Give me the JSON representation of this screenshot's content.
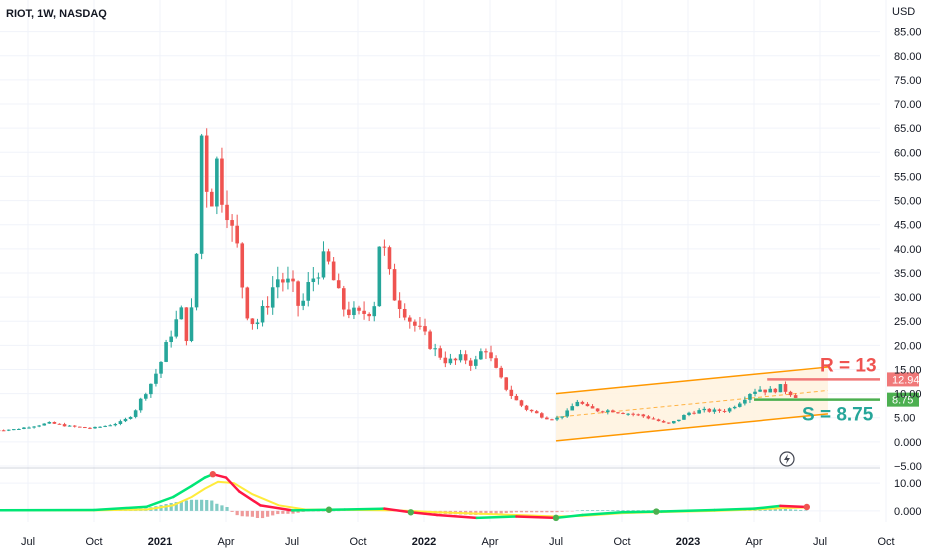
{
  "header": {
    "symbol": "RIOT, 1W, NASDAQ",
    "currency": "USD"
  },
  "chart_data": {
    "type": "candlestick",
    "title": "RIOT, 1W, NASDAQ",
    "ylim": [
      -5,
      87
    ],
    "y_ticks": [
      "85.00",
      "80.00",
      "75.00",
      "70.00",
      "65.00",
      "60.00",
      "55.00",
      "50.00",
      "45.00",
      "40.00",
      "35.00",
      "30.00",
      "25.00",
      "20.00",
      "15.00",
      "10.00",
      "5.00",
      "0.000",
      "−5.00"
    ],
    "x_ticks": [
      {
        "label": "Jul",
        "t": 2020.5
      },
      {
        "label": "Oct",
        "t": 2020.75
      },
      {
        "label": "2021",
        "t": 2021.0,
        "bold": true
      },
      {
        "label": "Apr",
        "t": 2021.25
      },
      {
        "label": "Jul",
        "t": 2021.5
      },
      {
        "label": "Oct",
        "t": 2021.75
      },
      {
        "label": "2022",
        "t": 2022.0,
        "bold": true
      },
      {
        "label": "Apr",
        "t": 2022.25
      },
      {
        "label": "Jul",
        "t": 2022.5
      },
      {
        "label": "Oct",
        "t": 2022.75
      },
      {
        "label": "2023",
        "t": 2023.0,
        "bold": true
      },
      {
        "label": "Apr",
        "t": 2023.25
      },
      {
        "label": "Jul",
        "t": 2023.5
      },
      {
        "label": "Oct",
        "t": 2023.75
      }
    ],
    "price_path": [
      [
        2020.35,
        2.4
      ],
      [
        2020.45,
        2.6
      ],
      [
        2020.52,
        3.3
      ],
      [
        2020.58,
        3.9
      ],
      [
        2020.66,
        3.2
      ],
      [
        2020.74,
        2.8
      ],
      [
        2020.8,
        3.4
      ],
      [
        2020.86,
        4.2
      ],
      [
        2020.9,
        6.0
      ],
      [
        2020.94,
        10.0
      ],
      [
        2020.97,
        12.5
      ],
      [
        2021.0,
        16.0
      ],
      [
        2021.04,
        22.5
      ],
      [
        2021.08,
        27.0
      ],
      [
        2021.1,
        22.0
      ],
      [
        2021.12,
        27.0
      ],
      [
        2021.14,
        40.0
      ],
      [
        2021.155,
        65.0
      ],
      [
        2021.17,
        57.0
      ],
      [
        2021.19,
        47.0
      ],
      [
        2021.21,
        60.0
      ],
      [
        2021.23,
        52.0
      ],
      [
        2021.25,
        50.0
      ],
      [
        2021.27,
        44.0
      ],
      [
        2021.29,
        41.0
      ],
      [
        2021.31,
        33.0
      ],
      [
        2021.33,
        27.0
      ],
      [
        2021.36,
        24.0
      ],
      [
        2021.4,
        28.0
      ],
      [
        2021.44,
        34.0
      ],
      [
        2021.48,
        33.0
      ],
      [
        2021.51,
        31.0
      ],
      [
        2021.53,
        27.0
      ],
      [
        2021.56,
        32.0
      ],
      [
        2021.6,
        36.0
      ],
      [
        2021.63,
        38.0
      ],
      [
        2021.66,
        33.0
      ],
      [
        2021.69,
        28.0
      ],
      [
        2021.72,
        27.0
      ],
      [
        2021.75,
        26.0
      ],
      [
        2021.78,
        27.0
      ],
      [
        2021.81,
        28.0
      ],
      [
        2021.835,
        44.0
      ],
      [
        2021.86,
        36.0
      ],
      [
        2021.89,
        30.0
      ],
      [
        2021.92,
        28.0
      ],
      [
        2021.95,
        25.0
      ],
      [
        2022.0,
        22.0
      ],
      [
        2022.04,
        19.0
      ],
      [
        2022.08,
        17.0
      ],
      [
        2022.11,
        16.5
      ],
      [
        2022.15,
        17.5
      ],
      [
        2022.19,
        16.0
      ],
      [
        2022.23,
        20.0
      ],
      [
        2022.26,
        16.0
      ],
      [
        2022.3,
        12.0
      ],
      [
        2022.34,
        9.0
      ],
      [
        2022.38,
        7.0
      ],
      [
        2022.42,
        6.0
      ],
      [
        2022.46,
        5.0
      ],
      [
        2022.5,
        4.8
      ],
      [
        2022.54,
        6.0
      ],
      [
        2022.58,
        8.5
      ],
      [
        2022.62,
        7.0
      ],
      [
        2022.66,
        6.5
      ],
      [
        2022.71,
        6.5
      ],
      [
        2022.76,
        6.0
      ],
      [
        2022.82,
        5.5
      ],
      [
        2022.88,
        4.5
      ],
      [
        2022.92,
        3.6
      ],
      [
        2022.96,
        4.5
      ],
      [
        2023.0,
        6.0
      ],
      [
        2023.05,
        6.5
      ],
      [
        2023.1,
        6.4
      ],
      [
        2023.15,
        6.6
      ],
      [
        2023.2,
        8.5
      ],
      [
        2023.24,
        10.5
      ],
      [
        2023.27,
        11.0
      ],
      [
        2023.31,
        10.5
      ],
      [
        2023.35,
        11.3
      ],
      [
        2023.38,
        10.4
      ],
      [
        2023.41,
        9.5
      ]
    ],
    "channel": {
      "upper": [
        [
          2022.5,
          10.0
        ],
        [
          2023.53,
          15.5
        ]
      ],
      "lower": [
        [
          2022.5,
          0.2
        ],
        [
          2023.53,
          5.8
        ]
      ]
    },
    "resistance": {
      "label": "R = 13",
      "value": 12.94,
      "tag": "12.94",
      "color": "#f07878",
      "x_from": 2023.3
    },
    "support": {
      "label": "S = 8.75",
      "value": 8.75,
      "tag": "8.75",
      "color": "#4caf50",
      "x_from": 2023.25
    },
    "indicator": {
      "ylim": [
        -4,
        14
      ],
      "y_ticks": [
        "10.00",
        "0.000"
      ],
      "fast": [
        [
          2020.35,
          0.2
        ],
        [
          2020.75,
          0.3
        ],
        [
          2020.95,
          1.5
        ],
        [
          2021.05,
          5
        ],
        [
          2021.12,
          9
        ],
        [
          2021.17,
          12
        ],
        [
          2021.2,
          13.2
        ],
        [
          2021.25,
          12
        ],
        [
          2021.3,
          7
        ],
        [
          2021.38,
          2
        ],
        [
          2021.5,
          0.2
        ],
        [
          2021.7,
          0.5
        ],
        [
          2021.85,
          0.8
        ],
        [
          2021.95,
          -0.5
        ],
        [
          2022.05,
          -1.5
        ],
        [
          2022.2,
          -2.5
        ],
        [
          2022.35,
          -2.0
        ],
        [
          2022.5,
          -2.5
        ],
        [
          2022.6,
          -1.5
        ],
        [
          2022.75,
          -0.5
        ],
        [
          2022.9,
          -0.2
        ],
        [
          2023.1,
          0.3
        ],
        [
          2023.25,
          0.8
        ],
        [
          2023.35,
          1.8
        ],
        [
          2023.45,
          1.4
        ]
      ],
      "slow": [
        [
          2020.35,
          0.2
        ],
        [
          2020.75,
          0.2
        ],
        [
          2020.95,
          0.5
        ],
        [
          2021.05,
          2
        ],
        [
          2021.12,
          5
        ],
        [
          2021.17,
          8
        ],
        [
          2021.22,
          10.5
        ],
        [
          2021.28,
          10
        ],
        [
          2021.35,
          6
        ],
        [
          2021.45,
          2
        ],
        [
          2021.55,
          0.5
        ],
        [
          2021.75,
          0.3
        ],
        [
          2021.9,
          0.2
        ],
        [
          2022.05,
          -0.5
        ],
        [
          2022.2,
          -1.0
        ],
        [
          2022.35,
          -1.5
        ],
        [
          2022.5,
          -2.0
        ],
        [
          2022.6,
          -1.8
        ],
        [
          2022.75,
          -0.8
        ],
        [
          2022.95,
          -0.3
        ],
        [
          2023.1,
          0.0
        ],
        [
          2023.25,
          0.5
        ],
        [
          2023.35,
          1.0
        ],
        [
          2023.45,
          1.2
        ]
      ]
    },
    "series": [
      {
        "name": "RIOT",
        "type": "candlestick"
      }
    ]
  },
  "colors": {
    "up": "#26a69a",
    "down": "#ef5350",
    "grid": "#f0f3fa",
    "channel_line": "#ff9800",
    "channel_fill": "#fff3e0",
    "fast_line": "#00e676",
    "fast_line_neg": "#ff1744",
    "slow_line": "#ffeb3b"
  },
  "icons": {
    "replay": "lightning-icon"
  }
}
